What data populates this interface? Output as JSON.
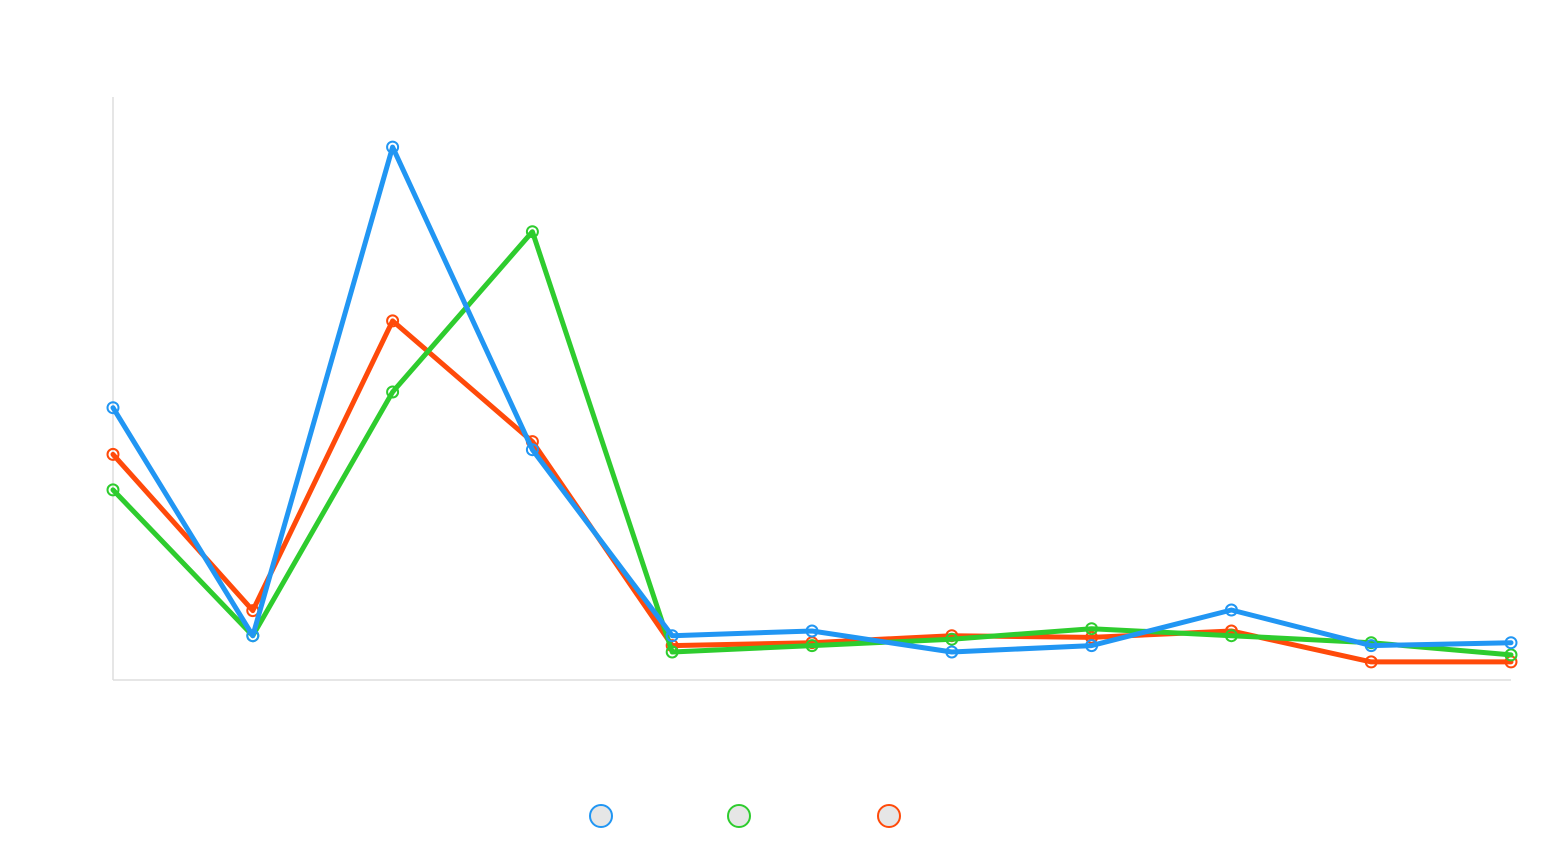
{
  "chart_data": {
    "type": "line",
    "title": "",
    "xlabel": "",
    "ylabel": "",
    "categories": [
      "",
      "",
      "",
      "",
      "",
      "",
      "",
      "",
      "",
      "",
      ""
    ],
    "ylim": [
      0,
      100
    ],
    "grid": false,
    "legend_position": "bottom",
    "series": [
      {
        "key": "blue",
        "color": "#2196f3",
        "values": [
          46.7,
          7.6,
          91.4,
          39.5,
          7.6,
          8.4,
          4.8,
          5.9,
          12.0,
          5.9,
          6.4
        ]
      },
      {
        "key": "green",
        "color": "#2ecc2e",
        "values": [
          32.6,
          7.6,
          49.4,
          76.9,
          4.8,
          5.9,
          7.0,
          8.8,
          7.6,
          6.4,
          4.3
        ]
      },
      {
        "key": "red",
        "color": "#ff4a0a",
        "values": [
          38.7,
          11.9,
          61.6,
          40.9,
          5.9,
          6.4,
          7.6,
          7.3,
          8.4,
          3.1,
          3.1
        ]
      }
    ]
  }
}
